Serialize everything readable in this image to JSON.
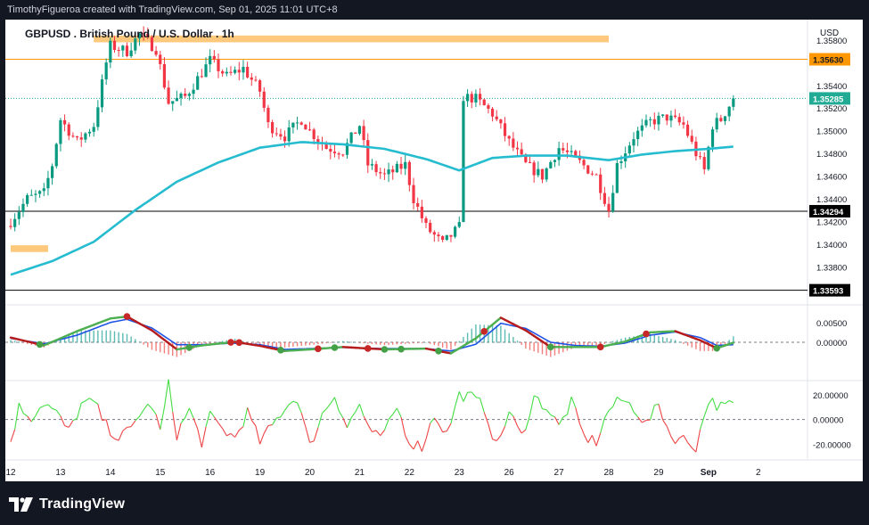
{
  "attribution": "TimothyFigueroa created with TradingView.com, Sep 01, 2025 11:01 UTC+8",
  "brand": {
    "name": "TradingView",
    "icon": "tradingview-logo-icon"
  },
  "currency_label": "USD",
  "colors": {
    "up": "#089981",
    "down": "#f23645",
    "ema": "#26bcd0",
    "resistance": "#ffbf66",
    "last_price": "#22ab94",
    "level": "#ff9800",
    "black": "#000000",
    "macd_fast": "#4caf50",
    "macd_slow": "#b71c1c",
    "macd_signal": "#1e53e5",
    "osc_up": "#44dd44",
    "osc_down": "#ee4444"
  },
  "chart_data": [
    {
      "type": "candlestick",
      "title": "GBPUSD . British Pound / U.S. Dollar . 1h",
      "xlabel": "",
      "ylabel": "",
      "ylim": [
        1.3348,
        1.3598
      ],
      "y_ticks": [
        "1.35800",
        "1.35400",
        "1.35200",
        "1.35000",
        "1.34800",
        "1.34600",
        "1.34400",
        "1.34200",
        "1.34000",
        "1.33800"
      ],
      "x_ticks": [
        {
          "index": 0,
          "label": "12"
        },
        {
          "index": 12,
          "label": "13"
        },
        {
          "index": 24,
          "label": "14"
        },
        {
          "index": 36,
          "label": "15"
        },
        {
          "index": 48,
          "label": "16"
        },
        {
          "index": 60,
          "label": "19"
        },
        {
          "index": 72,
          "label": "20"
        },
        {
          "index": 84,
          "label": "21"
        },
        {
          "index": 96,
          "label": "22"
        },
        {
          "index": 108,
          "label": "23"
        },
        {
          "index": 120,
          "label": "26"
        },
        {
          "index": 132,
          "label": "27"
        },
        {
          "index": 144,
          "label": "28"
        },
        {
          "index": 156,
          "label": "29"
        },
        {
          "index": 168,
          "label": "Sep"
        },
        {
          "index": 180,
          "label": "2"
        }
      ],
      "candles_count": 175,
      "close_anchors": [
        [
          0,
          1.342
        ],
        [
          4,
          1.344
        ],
        [
          8,
          1.3445
        ],
        [
          10,
          1.347
        ],
        [
          12,
          1.351
        ],
        [
          16,
          1.349
        ],
        [
          20,
          1.3505
        ],
        [
          23,
          1.356
        ],
        [
          24,
          1.3575
        ],
        [
          28,
          1.357
        ],
        [
          31,
          1.3585
        ],
        [
          35,
          1.3572
        ],
        [
          38,
          1.3525
        ],
        [
          42,
          1.353
        ],
        [
          48,
          1.3562
        ],
        [
          52,
          1.3548
        ],
        [
          56,
          1.3555
        ],
        [
          60,
          1.3535
        ],
        [
          62,
          1.3505
        ],
        [
          66,
          1.3495
        ],
        [
          70,
          1.351
        ],
        [
          72,
          1.35
        ],
        [
          76,
          1.3485
        ],
        [
          80,
          1.3482
        ],
        [
          84,
          1.3505
        ],
        [
          86,
          1.347
        ],
        [
          90,
          1.346
        ],
        [
          95,
          1.347
        ],
        [
          97,
          1.344
        ],
        [
          100,
          1.3415
        ],
        [
          104,
          1.34
        ],
        [
          108,
          1.3415
        ],
        [
          109,
          1.353
        ],
        [
          112,
          1.3528
        ],
        [
          116,
          1.3515
        ],
        [
          120,
          1.349
        ],
        [
          124,
          1.347
        ],
        [
          128,
          1.346
        ],
        [
          132,
          1.3485
        ],
        [
          136,
          1.3475
        ],
        [
          141,
          1.346
        ],
        [
          144,
          1.343
        ],
        [
          146,
          1.347
        ],
        [
          150,
          1.3495
        ],
        [
          154,
          1.3508
        ],
        [
          158,
          1.3512
        ],
        [
          162,
          1.3505
        ],
        [
          165,
          1.348
        ],
        [
          167,
          1.3465
        ],
        [
          169,
          1.3505
        ],
        [
          171,
          1.351
        ],
        [
          174,
          1.35285
        ]
      ],
      "ema_anchors": [
        [
          0,
          1.3373
        ],
        [
          10,
          1.3385
        ],
        [
          20,
          1.3402
        ],
        [
          30,
          1.343
        ],
        [
          40,
          1.3455
        ],
        [
          50,
          1.3472
        ],
        [
          60,
          1.3485
        ],
        [
          70,
          1.349
        ],
        [
          80,
          1.3488
        ],
        [
          90,
          1.3484
        ],
        [
          100,
          1.3475
        ],
        [
          108,
          1.3465
        ],
        [
          116,
          1.3476
        ],
        [
          124,
          1.3478
        ],
        [
          134,
          1.3478
        ],
        [
          144,
          1.3474
        ],
        [
          152,
          1.3479
        ],
        [
          160,
          1.3482
        ],
        [
          168,
          1.3484
        ],
        [
          174,
          1.3486
        ]
      ],
      "resistance_zones": [
        {
          "from_index": 20,
          "to_index": 144,
          "low": 1.3578,
          "high": 1.3584
        },
        {
          "from_index": 0,
          "to_index": 9,
          "low": 1.3393,
          "high": 1.3399
        }
      ],
      "horizontal_levels": [
        {
          "value": 1.3563,
          "label": "1.35630",
          "style": "level"
        },
        {
          "value": 1.3429,
          "label": "1.34294",
          "style": "black"
        },
        {
          "value": 1.33593,
          "label": "1.33593",
          "style": "black"
        }
      ],
      "last_price": {
        "value": 1.35285,
        "label": "1.35285"
      }
    },
    {
      "type": "line",
      "name": "MACD-style oscillator",
      "ylim": [
        -0.009,
        0.009
      ],
      "y_ticks": [
        "0.00500",
        "0.00000"
      ],
      "fast_anchors": [
        [
          0,
          0.0012
        ],
        [
          8,
          -0.0008
        ],
        [
          16,
          0.0028
        ],
        [
          24,
          0.006
        ],
        [
          28,
          0.0065
        ],
        [
          34,
          0.003
        ],
        [
          40,
          -0.0018
        ],
        [
          46,
          -0.0008
        ],
        [
          54,
          0.0001
        ],
        [
          60,
          -0.0009
        ],
        [
          66,
          -0.0022
        ],
        [
          72,
          -0.0018
        ],
        [
          80,
          -0.0012
        ],
        [
          90,
          -0.0018
        ],
        [
          100,
          -0.0016
        ],
        [
          106,
          -0.0028
        ],
        [
          112,
          0.001
        ],
        [
          118,
          0.0062
        ],
        [
          124,
          0.003
        ],
        [
          130,
          -0.0012
        ],
        [
          136,
          -0.0012
        ],
        [
          142,
          -0.0012
        ],
        [
          148,
          0.0002
        ],
        [
          154,
          0.0025
        ],
        [
          160,
          0.0028
        ],
        [
          166,
          0.0005
        ],
        [
          170,
          -0.0015
        ],
        [
          174,
          -0.0001
        ]
      ],
      "signal_anchors": [
        [
          0,
          0.001
        ],
        [
          8,
          -0.0004
        ],
        [
          16,
          0.0018
        ],
        [
          24,
          0.005
        ],
        [
          28,
          0.0058
        ],
        [
          34,
          0.0036
        ],
        [
          40,
          -0.0006
        ],
        [
          46,
          -0.0006
        ],
        [
          54,
          -0.0002
        ],
        [
          60,
          -0.0006
        ],
        [
          66,
          -0.0018
        ],
        [
          72,
          -0.0016
        ],
        [
          80,
          -0.0013
        ],
        [
          90,
          -0.0016
        ],
        [
          100,
          -0.0016
        ],
        [
          106,
          -0.0022
        ],
        [
          112,
          -0.0005
        ],
        [
          118,
          0.0048
        ],
        [
          124,
          0.0035
        ],
        [
          130,
          0.0
        ],
        [
          136,
          -0.0008
        ],
        [
          142,
          -0.001
        ],
        [
          148,
          -0.0002
        ],
        [
          154,
          0.0018
        ],
        [
          160,
          0.0026
        ],
        [
          166,
          0.0012
        ],
        [
          170,
          -0.0008
        ],
        [
          174,
          -0.0006
        ]
      ],
      "markers": [
        {
          "index": 7,
          "color": "green"
        },
        {
          "index": 28,
          "color": "red"
        },
        {
          "index": 43,
          "color": "green"
        },
        {
          "index": 53,
          "color": "red"
        },
        {
          "index": 55,
          "color": "red"
        },
        {
          "index": 65,
          "color": "green"
        },
        {
          "index": 74,
          "color": "red"
        },
        {
          "index": 78,
          "color": "green"
        },
        {
          "index": 86,
          "color": "red"
        },
        {
          "index": 90,
          "color": "green"
        },
        {
          "index": 94,
          "color": "green"
        },
        {
          "index": 103,
          "color": "green"
        },
        {
          "index": 114,
          "color": "red"
        },
        {
          "index": 130,
          "color": "green"
        },
        {
          "index": 142,
          "color": "red"
        },
        {
          "index": 153,
          "color": "red"
        },
        {
          "index": 170,
          "color": "green"
        }
      ]
    },
    {
      "type": "line",
      "name": "momentum oscillator",
      "ylim": [
        -32,
        30
      ],
      "y_ticks": [
        "20.00000",
        "0.00000",
        "-20.00000"
      ],
      "value_anchors": [
        [
          0,
          -18
        ],
        [
          2,
          10
        ],
        [
          5,
          2
        ],
        [
          8,
          14
        ],
        [
          11,
          5
        ],
        [
          14,
          -10
        ],
        [
          17,
          12
        ],
        [
          20,
          14
        ],
        [
          23,
          -5
        ],
        [
          26,
          -15
        ],
        [
          29,
          -8
        ],
        [
          31,
          5
        ],
        [
          34,
          12
        ],
        [
          36,
          -10
        ],
        [
          38,
          28
        ],
        [
          40,
          -12
        ],
        [
          43,
          8
        ],
        [
          46,
          -18
        ],
        [
          48,
          2
        ],
        [
          51,
          -8
        ],
        [
          54,
          -15
        ],
        [
          57,
          6
        ],
        [
          60,
          -18
        ],
        [
          63,
          -5
        ],
        [
          66,
          10
        ],
        [
          69,
          18
        ],
        [
          72,
          -22
        ],
        [
          75,
          4
        ],
        [
          78,
          20
        ],
        [
          81,
          -6
        ],
        [
          84,
          12
        ],
        [
          87,
          -14
        ],
        [
          90,
          -12
        ],
        [
          93,
          10
        ],
        [
          96,
          -18
        ],
        [
          99,
          -22
        ],
        [
          102,
          4
        ],
        [
          105,
          -12
        ],
        [
          108,
          20
        ],
        [
          111,
          18
        ],
        [
          114,
          10
        ],
        [
          117,
          -22
        ],
        [
          120,
          6
        ],
        [
          123,
          -14
        ],
        [
          126,
          18
        ],
        [
          129,
          10
        ],
        [
          132,
          -6
        ],
        [
          135,
          14
        ],
        [
          138,
          -14
        ],
        [
          141,
          -18
        ],
        [
          144,
          8
        ],
        [
          147,
          16
        ],
        [
          150,
          10
        ],
        [
          153,
          -4
        ],
        [
          156,
          12
        ],
        [
          159,
          -14
        ],
        [
          162,
          -16
        ],
        [
          165,
          -22
        ],
        [
          168,
          16
        ],
        [
          171,
          10
        ],
        [
          174,
          12
        ]
      ]
    }
  ]
}
